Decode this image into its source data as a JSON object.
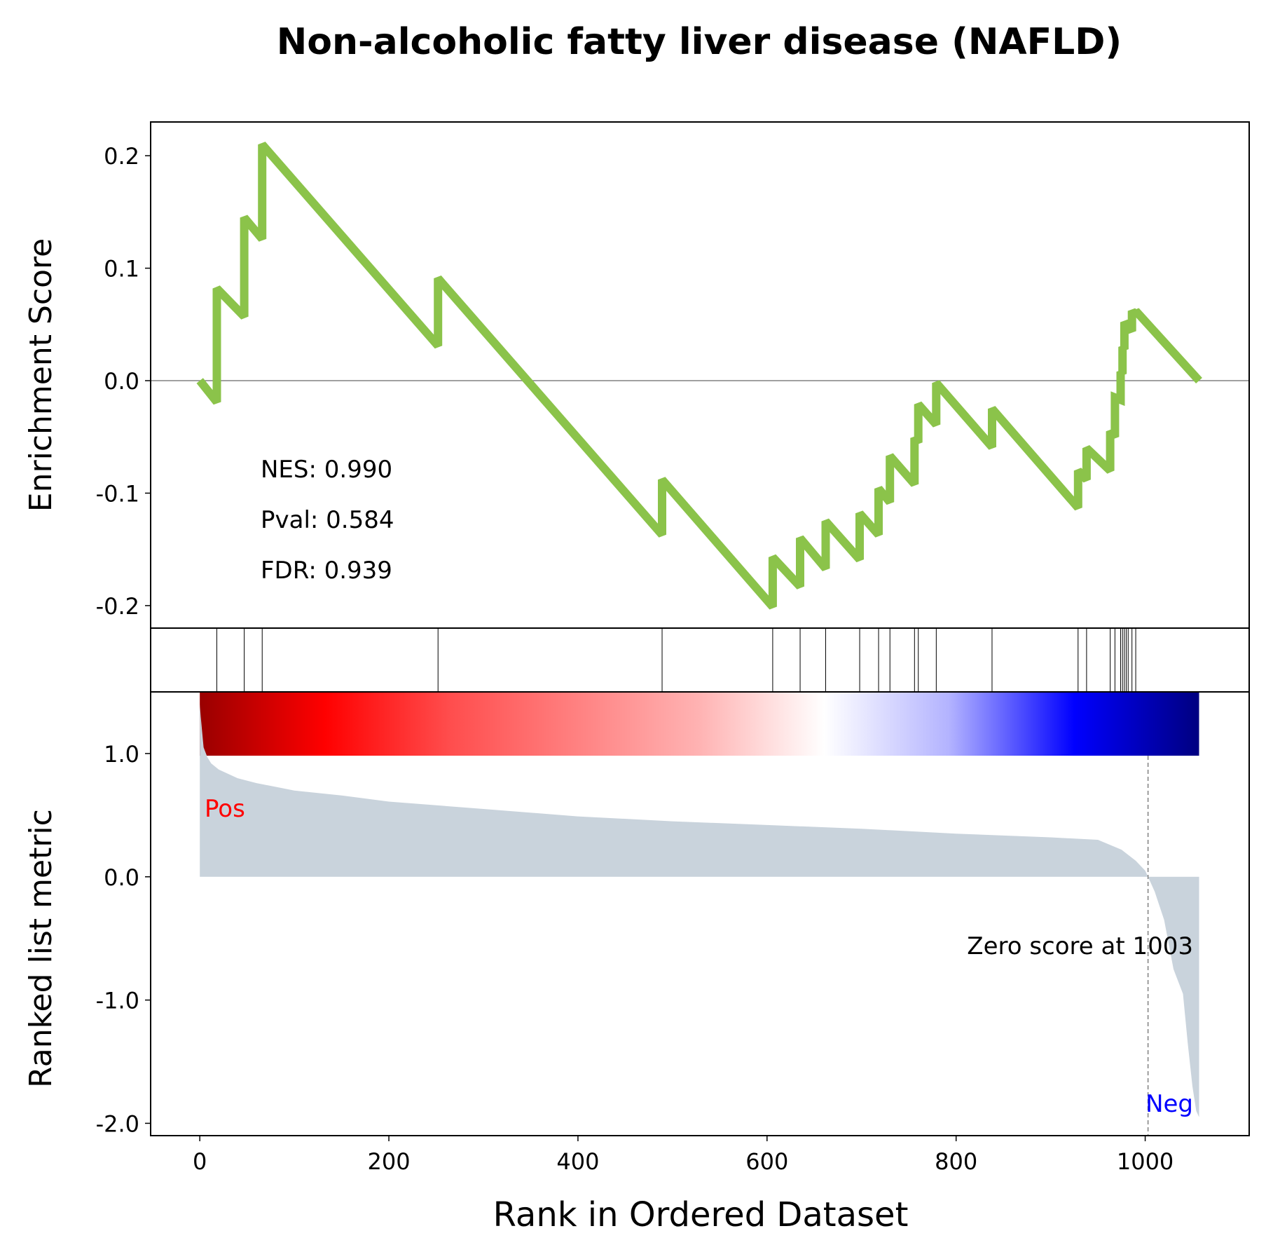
{
  "chart_data": {
    "type": "line",
    "title": "Non-alcoholic fatty liver disease (NAFLD)",
    "xlabel": "Rank in Ordered Dataset",
    "xlim": [
      -52,
      1110
    ],
    "xticks": [
      0,
      200,
      400,
      600,
      800,
      1000
    ],
    "es_panel": {
      "ylabel": "Enrichment Score",
      "ylim": [
        -0.22,
        0.23
      ],
      "yticks": [
        0.2,
        0.1,
        0.0,
        -0.1,
        -0.2
      ],
      "ytick_labels": [
        "0.2",
        "0.1",
        "0.0",
        "-0.1",
        "-0.2"
      ],
      "line_color": "#8bc34a",
      "series": [
        {
          "x": [
            0,
            18,
            18,
            47,
            47,
            66,
            66,
            252,
            252,
            489,
            489,
            606,
            606,
            635,
            635,
            662,
            662,
            698,
            698,
            718,
            718,
            730,
            730,
            756,
            756,
            760,
            760,
            779,
            779,
            838,
            838,
            929,
            929,
            938,
            938,
            963,
            963,
            968,
            968,
            974,
            974,
            976,
            976,
            978,
            978,
            980,
            980,
            982,
            982,
            986,
            986,
            990,
            990,
            1057
          ],
          "y": [
            0.0,
            -0.019,
            0.082,
            0.057,
            0.145,
            0.126,
            0.21,
            0.031,
            0.091,
            -0.137,
            -0.088,
            -0.201,
            -0.157,
            -0.183,
            -0.14,
            -0.167,
            -0.125,
            -0.159,
            -0.118,
            -0.137,
            -0.096,
            -0.108,
            -0.067,
            -0.092,
            -0.051,
            -0.055,
            -0.021,
            -0.039,
            -0.002,
            -0.059,
            -0.025,
            -0.113,
            -0.08,
            -0.088,
            -0.06,
            -0.08,
            -0.045,
            -0.05,
            -0.015,
            -0.017,
            0.008,
            0.006,
            0.03,
            0.028,
            0.052,
            0.05,
            0.052,
            0.05,
            0.048,
            0.044,
            0.062,
            0.058,
            0.062,
            0.0
          ]
        }
      ],
      "annotations": [
        "NES: 0.990",
        "Pval: 0.584",
        "FDR: 0.939"
      ]
    },
    "hits": [
      18,
      47,
      66,
      252,
      489,
      606,
      635,
      662,
      698,
      718,
      730,
      756,
      760,
      779,
      838,
      929,
      938,
      963,
      968,
      974,
      976,
      978,
      980,
      982,
      986,
      990
    ],
    "colorbar": {
      "stops": [
        "#990000",
        "#ff0000",
        "#ff4d4d",
        "#ff8080",
        "#ffb3b3",
        "#ffffff",
        "#b3b3ff",
        "#0000ff",
        "#000080"
      ]
    },
    "metric_panel": {
      "ylabel": "Ranked list metric",
      "ylim": [
        -2.1,
        1.5
      ],
      "yticks": [
        1.0,
        0.0,
        -1.0,
        -2.0
      ],
      "ytick_labels": [
        "1.0",
        "0.0",
        "-1.0",
        "-2.0"
      ],
      "fill_color": "#c9d3dc",
      "series": [
        {
          "x": [
            0,
            1,
            4,
            8,
            12,
            20,
            40,
            60,
            80,
            100,
            150,
            200,
            300,
            400,
            500,
            600,
            700,
            800,
            900,
            950,
            975,
            990,
            1000,
            1003,
            1010,
            1020,
            1030,
            1040,
            1045,
            1050,
            1054,
            1057
          ],
          "y": [
            1.4,
            1.3,
            1.05,
            0.97,
            0.92,
            0.87,
            0.8,
            0.76,
            0.73,
            0.7,
            0.66,
            0.61,
            0.55,
            0.49,
            0.45,
            0.42,
            0.39,
            0.35,
            0.32,
            0.3,
            0.22,
            0.13,
            0.05,
            0.0,
            -0.12,
            -0.35,
            -0.75,
            -0.95,
            -1.35,
            -1.7,
            -1.9,
            -1.95
          ]
        }
      ],
      "zero_score_x": 1003,
      "zero_score_label": "Zero score at 1003",
      "pos_label": "Pos",
      "neg_label": "Neg",
      "pos_color": "#ff0000",
      "neg_color": "#0000ff"
    }
  }
}
